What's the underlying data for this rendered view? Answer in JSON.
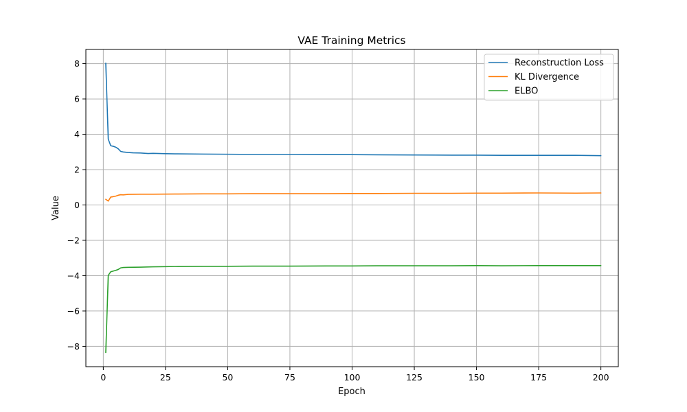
{
  "chart_data": {
    "type": "line",
    "title": "VAE Training Metrics",
    "xlabel": "Epoch",
    "ylabel": "Value",
    "xlim": [
      -7,
      207
    ],
    "ylim": [
      -9.15,
      8.8
    ],
    "xticks": [
      0,
      25,
      50,
      75,
      100,
      125,
      150,
      175,
      200
    ],
    "yticks": [
      -8,
      -6,
      -4,
      -2,
      0,
      2,
      4,
      6,
      8
    ],
    "grid": true,
    "legend_position": "top-right",
    "series": [
      {
        "name": "Reconstruction Loss",
        "color": "#1f77b4",
        "points": [
          [
            1,
            8.02
          ],
          [
            2,
            3.72
          ],
          [
            3,
            3.35
          ],
          [
            4,
            3.32
          ],
          [
            5,
            3.27
          ],
          [
            6,
            3.18
          ],
          [
            7,
            3.03
          ],
          [
            8,
            3.0
          ],
          [
            10,
            2.97
          ],
          [
            12,
            2.95
          ],
          [
            15,
            2.94
          ],
          [
            18,
            2.91
          ],
          [
            20,
            2.92
          ],
          [
            25,
            2.9
          ],
          [
            30,
            2.89
          ],
          [
            40,
            2.88
          ],
          [
            50,
            2.87
          ],
          [
            60,
            2.86
          ],
          [
            75,
            2.86
          ],
          [
            90,
            2.85
          ],
          [
            100,
            2.85
          ],
          [
            110,
            2.84
          ],
          [
            125,
            2.83
          ],
          [
            140,
            2.82
          ],
          [
            150,
            2.82
          ],
          [
            160,
            2.81
          ],
          [
            175,
            2.81
          ],
          [
            190,
            2.81
          ],
          [
            200,
            2.79
          ]
        ]
      },
      {
        "name": "KL Divergence",
        "color": "#ff7f0e",
        "points": [
          [
            1,
            0.32
          ],
          [
            2,
            0.22
          ],
          [
            3,
            0.45
          ],
          [
            4,
            0.47
          ],
          [
            5,
            0.5
          ],
          [
            6,
            0.55
          ],
          [
            7,
            0.58
          ],
          [
            8,
            0.57
          ],
          [
            10,
            0.6
          ],
          [
            15,
            0.61
          ],
          [
            20,
            0.61
          ],
          [
            30,
            0.62
          ],
          [
            40,
            0.63
          ],
          [
            50,
            0.63
          ],
          [
            60,
            0.64
          ],
          [
            75,
            0.64
          ],
          [
            90,
            0.64
          ],
          [
            100,
            0.65
          ],
          [
            110,
            0.65
          ],
          [
            125,
            0.66
          ],
          [
            140,
            0.66
          ],
          [
            150,
            0.67
          ],
          [
            160,
            0.67
          ],
          [
            175,
            0.68
          ],
          [
            190,
            0.67
          ],
          [
            200,
            0.68
          ]
        ]
      },
      {
        "name": "ELBO",
        "color": "#2ca02c",
        "points": [
          [
            1,
            -8.35
          ],
          [
            2,
            -3.98
          ],
          [
            3,
            -3.78
          ],
          [
            4,
            -3.74
          ],
          [
            5,
            -3.7
          ],
          [
            6,
            -3.65
          ],
          [
            7,
            -3.56
          ],
          [
            8,
            -3.54
          ],
          [
            10,
            -3.53
          ],
          [
            15,
            -3.52
          ],
          [
            20,
            -3.5
          ],
          [
            25,
            -3.49
          ],
          [
            30,
            -3.48
          ],
          [
            40,
            -3.47
          ],
          [
            50,
            -3.47
          ],
          [
            60,
            -3.46
          ],
          [
            75,
            -3.46
          ],
          [
            90,
            -3.45
          ],
          [
            100,
            -3.45
          ],
          [
            110,
            -3.44
          ],
          [
            125,
            -3.44
          ],
          [
            140,
            -3.44
          ],
          [
            150,
            -3.43
          ],
          [
            160,
            -3.44
          ],
          [
            175,
            -3.43
          ],
          [
            190,
            -3.43
          ],
          [
            200,
            -3.43
          ]
        ]
      }
    ]
  }
}
